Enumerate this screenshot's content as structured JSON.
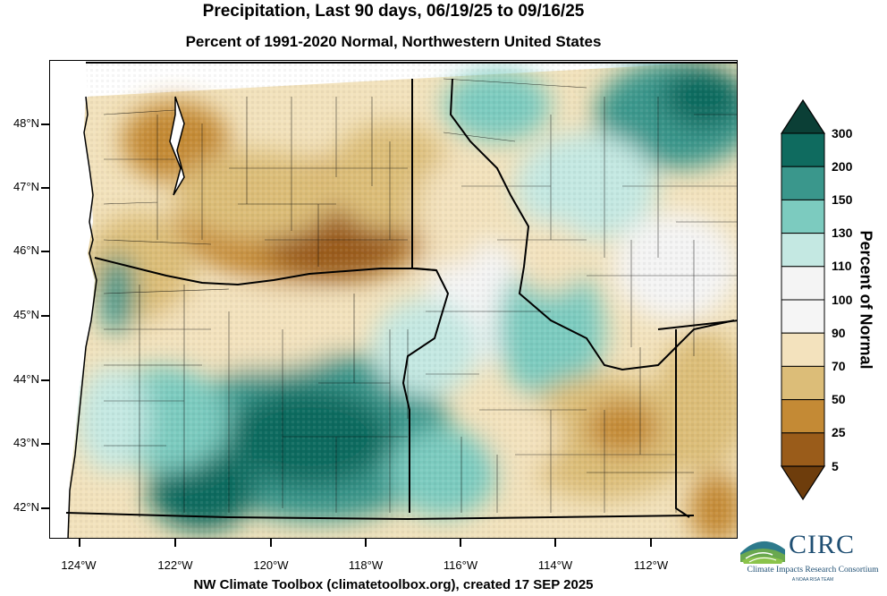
{
  "title": "Precipitation, Last 90 days, 06/19/25 to 09/16/25",
  "subtitle": "Percent of 1991-2020 Normal, Northwestern United States",
  "footer": "NW Climate Toolbox (climatetoolbox.org), created 17 SEP 2025",
  "latitude_labels": [
    "48°N",
    "47°N",
    "46°N",
    "45°N",
    "44°N",
    "43°N",
    "42°N"
  ],
  "longitude_labels": [
    "124°W",
    "122°W",
    "120°W",
    "118°W",
    "116°W",
    "114°W",
    "112°W"
  ],
  "colorbar": {
    "title": "Percent of Normal",
    "labels": [
      "300",
      "200",
      "150",
      "130",
      "110",
      "100",
      "90",
      "70",
      "50",
      "25",
      "5"
    ],
    "colors": [
      "#0b3f36",
      "#0f6b5f",
      "#3a978c",
      "#7ccbbf",
      "#c4e8e2",
      "#f4f4f4",
      "#f5f5f5",
      "#f3e2bd",
      "#dcbd78",
      "#c48a35",
      "#9a5c1a",
      "#6e3d0c"
    ]
  },
  "logo": {
    "name": "CIRC",
    "subtitle": "Climate Impacts Research Consortium",
    "tagline": "A NOAA RISA TEAM"
  }
}
